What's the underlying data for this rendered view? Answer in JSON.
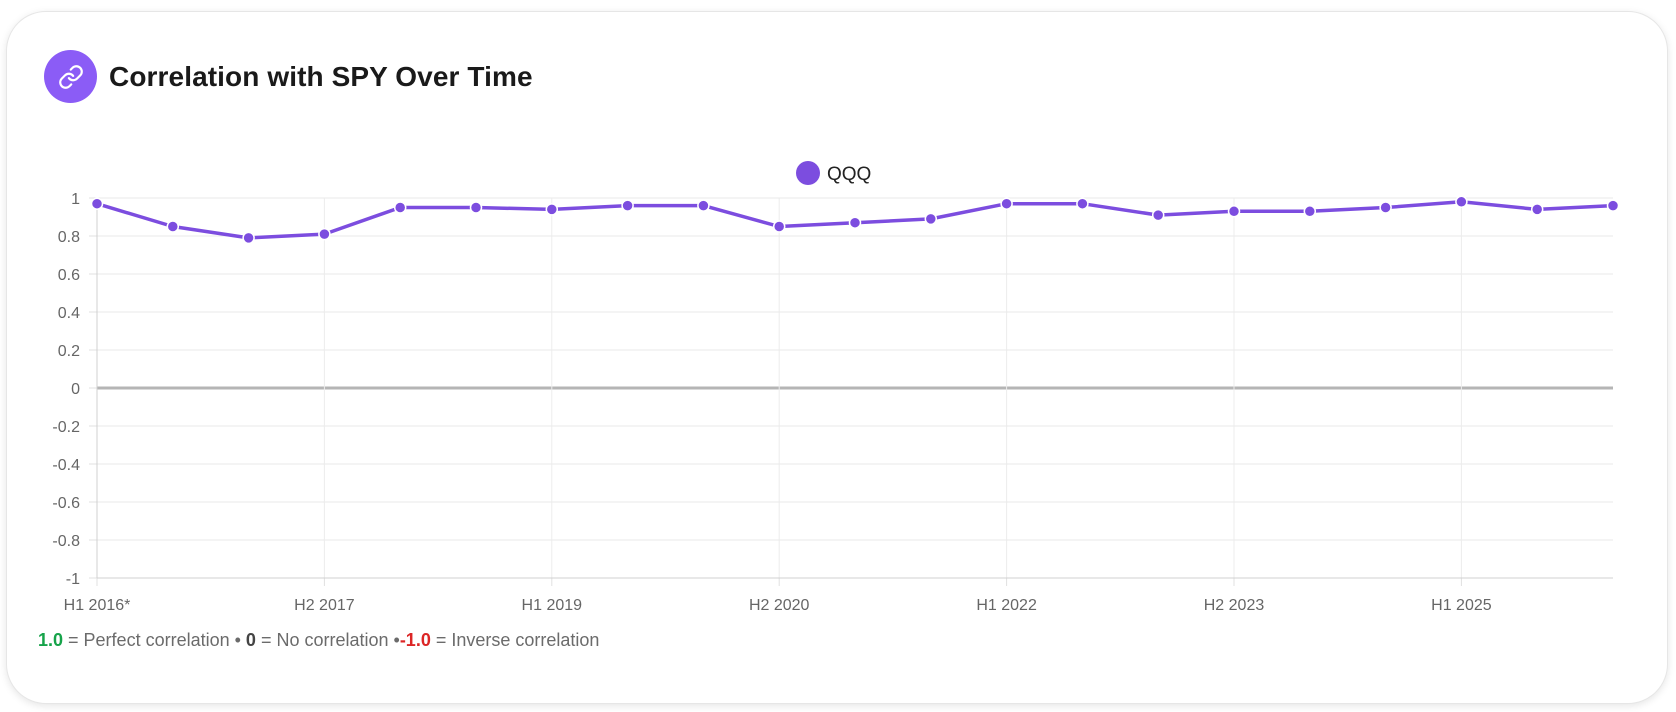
{
  "card": {
    "title": "Correlation with SPY Over Time",
    "icon": "link-icon"
  },
  "colors": {
    "accent": "#8b5cf6",
    "line": "#7c4ddf",
    "positive": "#16a34a",
    "negative": "#dc2626"
  },
  "chart_data": {
    "type": "line",
    "title": "",
    "xlabel": "",
    "ylabel": "",
    "ylim": [
      -1,
      1
    ],
    "y_ticks": [
      1,
      0.8,
      0.6,
      0.4,
      0.2,
      0,
      -0.2,
      -0.4,
      -0.6,
      -0.8,
      -1
    ],
    "y_tick_labels": [
      "1",
      "0.8",
      "0.6",
      "0.4",
      "0.2",
      "0",
      "-0.2",
      "-0.4",
      "-0.6",
      "-0.8",
      "-1"
    ],
    "x": [
      "H1 2016*",
      "H2 2016",
      "H1 2017",
      "H2 2017",
      "H1 2018",
      "H2 2018",
      "H1 2019",
      "H2 2019",
      "H1 2020",
      "H2 2020",
      "H1 2021",
      "H2 2021",
      "H1 2022",
      "H2 2022",
      "H1 2023",
      "H2 2023",
      "H1 2024",
      "H2 2024",
      "H1 2025",
      "H2 2025",
      "H1 2026"
    ],
    "x_tick_labels": [
      {
        "index": 0,
        "label": "H1 2016*"
      },
      {
        "index": 3,
        "label": "H2 2017"
      },
      {
        "index": 6,
        "label": "H1 2019"
      },
      {
        "index": 9,
        "label": "H2 2020"
      },
      {
        "index": 12,
        "label": "H1 2022"
      },
      {
        "index": 15,
        "label": "H2 2023"
      },
      {
        "index": 18,
        "label": "H1 2025"
      }
    ],
    "series": [
      {
        "name": "QQQ",
        "values": [
          0.97,
          0.85,
          0.79,
          0.81,
          0.95,
          0.95,
          0.94,
          0.96,
          0.96,
          0.85,
          0.87,
          0.89,
          0.97,
          0.97,
          0.91,
          0.93,
          0.93,
          0.95,
          0.98,
          0.94,
          0.96
        ]
      }
    ],
    "grid": true,
    "legend": "top-center"
  },
  "footnote": {
    "pos_value": "1.0",
    "pos_text": " = Perfect correlation • ",
    "zero_value": "0",
    "zero_text": " = No correlation •",
    "neg_value": "-1.0",
    "neg_text": " = Inverse correlation"
  }
}
